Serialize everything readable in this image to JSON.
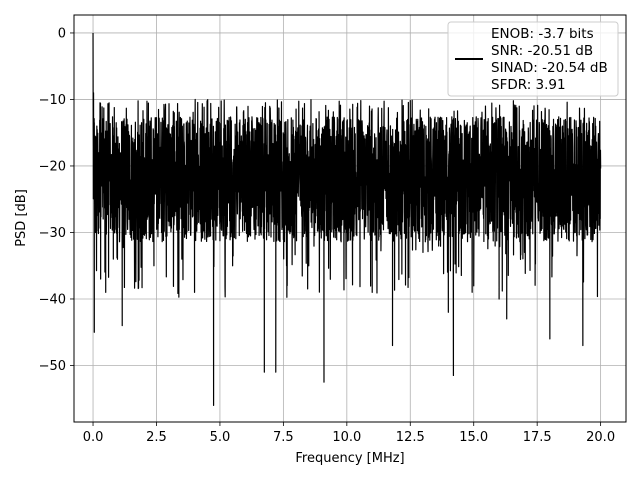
{
  "chart_data": {
    "type": "line",
    "xlabel": "Frequency [MHz]",
    "ylabel": "PSD [dB]",
    "xlim": [
      -0.75,
      21.0
    ],
    "ylim": [
      -58.5,
      2.7
    ],
    "xticks": [
      0.0,
      2.5,
      5.0,
      7.5,
      10.0,
      12.5,
      15.0,
      17.5,
      20.0
    ],
    "xtick_labels": [
      "0.0",
      "2.5",
      "5.0",
      "7.5",
      "10.0",
      "12.5",
      "15.0",
      "17.5",
      "20.0"
    ],
    "yticks": [
      0,
      -10,
      -20,
      -30,
      -40,
      -50
    ],
    "ytick_labels": [
      "0",
      "−10",
      "−20",
      "−30",
      "−40",
      "−50"
    ],
    "grid": true,
    "legend_position": "top-right",
    "series": [
      {
        "name": "ENOB: -3.7 bits\nSNR: -20.51 dB\nSINAD: -20.54 dB\nSFDR: 3.91",
        "legend_lines": [
          "ENOB: -3.7 bits",
          "SNR: -20.51 dB",
          "SINAD: -20.54 dB",
          "SFDR: 3.91"
        ],
        "color": "#000000",
        "description_of_shape": "noise floor",
        "x": [
          0.0,
          0.01,
          0.02,
          0.05,
          0.1,
          0.15,
          0.2,
          0.3,
          0.4,
          0.5,
          0.6,
          0.8,
          1.0,
          1.15,
          1.3,
          1.6,
          2.0,
          2.4,
          2.8,
          3.0,
          3.2,
          3.5,
          3.8,
          4.0,
          4.3,
          4.6,
          4.75,
          5.0,
          5.5,
          6.0,
          6.5,
          6.75,
          7.0,
          7.2,
          7.5,
          8.0,
          8.5,
          9.0,
          9.1,
          9.5,
          10.0,
          10.5,
          11.0,
          11.5,
          11.8,
          12.0,
          12.5,
          13.0,
          13.5,
          14.0,
          14.2,
          14.5,
          15.0,
          15.5,
          16.0,
          16.3,
          16.5,
          17.0,
          17.5,
          18.0,
          18.5,
          19.0,
          19.3,
          19.5,
          20.0
        ],
        "values": [
          0.0,
          -17.0,
          -9.0,
          -45.0,
          -30.0,
          -14.0,
          -26.0,
          -37.0,
          -20.0,
          -39.0,
          -15.0,
          -34.0,
          -22.0,
          -44.0,
          -18.0,
          -31.0,
          -13.0,
          -35.0,
          -20.0,
          -29.0,
          -12.0,
          -34.0,
          -18.0,
          -39.0,
          -14.0,
          -28.0,
          -56.0,
          -22.0,
          -35.0,
          -13.0,
          -29.0,
          -51.0,
          -18.0,
          -51.0,
          -26.0,
          -14.0,
          -35.0,
          -19.0,
          -52.5,
          -13.0,
          -30.0,
          -18.0,
          -39.0,
          -15.0,
          -47.0,
          -21.0,
          -12.0,
          -33.0,
          -18.0,
          -42.0,
          -51.5,
          -14.0,
          -29.0,
          -19.0,
          -40.0,
          -43.0,
          -15.0,
          -33.0,
          -21.0,
          -46.0,
          -14.0,
          -30.0,
          -47.0,
          -18.0,
          -20.0
        ]
      }
    ]
  }
}
